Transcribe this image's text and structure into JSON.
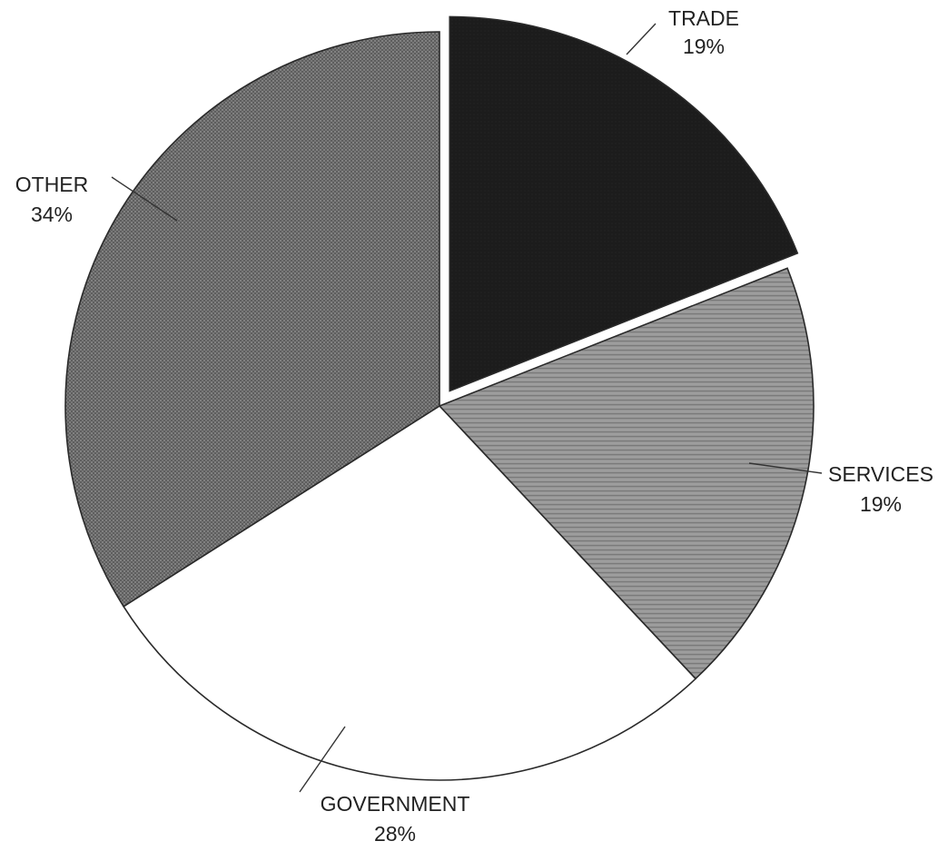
{
  "chart_data": {
    "type": "pie",
    "title": "",
    "start_angle_deg": 0,
    "direction": "clockwise",
    "exploded": [
      "TRADE"
    ],
    "slices": [
      {
        "label": "TRADE",
        "value": 19,
        "value_label": "19%",
        "color": "#1c1c1c",
        "pattern": "solid-dark"
      },
      {
        "label": "SERVICES",
        "value": 19,
        "value_label": "19%",
        "color": "#8e8e8e",
        "pattern": "horizontal-texture"
      },
      {
        "label": "GOVERNMENT",
        "value": 28,
        "value_label": "28%",
        "color": "#ffffff",
        "pattern": "none"
      },
      {
        "label": "OTHER",
        "value": 34,
        "value_label": "34%",
        "color": "#6e6e6e",
        "pattern": "dots"
      }
    ]
  }
}
